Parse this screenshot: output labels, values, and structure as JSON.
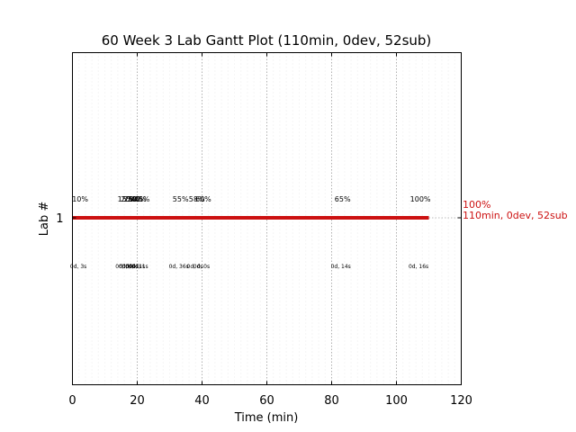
{
  "chart_data": {
    "type": "gantt",
    "title": "60 Week 3 Lab Gantt Plot (110min, 0dev, 52sub)",
    "xlabel": "Time (min)",
    "ylabel": "Lab #",
    "xlim": [
      0,
      120
    ],
    "xticks": [
      "0",
      "20",
      "40",
      "60",
      "80",
      "100",
      "120"
    ],
    "yticks": [
      "1"
    ],
    "major_grid_step": 20,
    "minor_grid_step": 2,
    "grid": true,
    "bar": {
      "lab": "1",
      "start": 0,
      "end": 110,
      "color": "#cc1111"
    },
    "milestones": [
      {
        "x": 1,
        "percent": "10%",
        "duration": "0d, 3s"
      },
      {
        "x": 15,
        "percent": "15%",
        "duration": "0d, 0s"
      },
      {
        "x": 16,
        "percent": "20%",
        "duration": "0d, 0s"
      },
      {
        "x": 17,
        "percent": "25%",
        "duration": "0d, 0s"
      },
      {
        "x": 18,
        "percent": "30%",
        "duration": "0d, 1s"
      },
      {
        "x": 19,
        "percent": "40%",
        "duration": "0d, 1s"
      },
      {
        "x": 20,
        "percent": "45%",
        "duration": "0d, 1s"
      },
      {
        "x": 32,
        "percent": "55%",
        "duration": "0d, 36s"
      },
      {
        "x": 37,
        "percent": "58%",
        "duration": "0d, 0s"
      },
      {
        "x": 39,
        "percent": "60%",
        "duration": "0d, 0s"
      },
      {
        "x": 82,
        "percent": "65%",
        "duration": "0d, 14s"
      },
      {
        "x": 106,
        "percent": "100%",
        "duration": "0d, 16s"
      }
    ],
    "end_label": {
      "percent": "100%",
      "summary": "110min, 0dev, 52sub",
      "color": "#cc1111"
    }
  }
}
